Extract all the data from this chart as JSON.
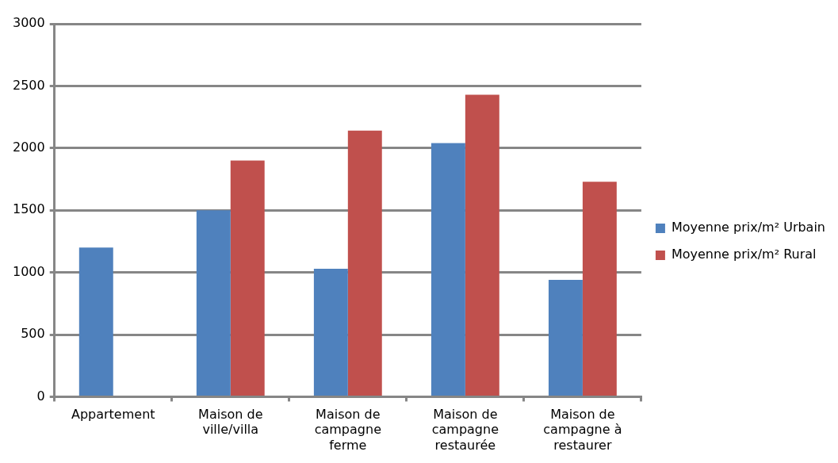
{
  "chart_data": {
    "type": "bar",
    "categories": [
      "Appartement",
      "Maison de ville/villa",
      "Maison de campagne ferme",
      "Maison de campagne restaurée",
      "Maison de campagne à restaurer"
    ],
    "series": [
      {
        "name": "Moyenne prix/m² Urbain",
        "color": "#4f81bd",
        "values": [
          1200,
          1500,
          1030,
          2040,
          940
        ]
      },
      {
        "name": "Moyenne prix/m² Rural",
        "color": "#c0504d",
        "values": [
          null,
          1900,
          2140,
          2430,
          1730
        ]
      }
    ],
    "ylim": [
      0,
      3000
    ],
    "yticks": [
      0,
      500,
      1000,
      1500,
      2000,
      2500,
      3000
    ],
    "grid": "y",
    "legend": "right"
  }
}
